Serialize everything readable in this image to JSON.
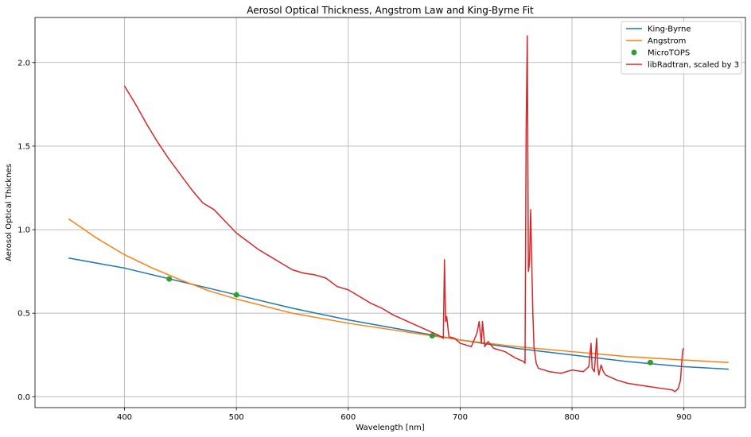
{
  "chart_data": {
    "type": "line",
    "title": "Aerosol Optical Thickness, Angstrom Law and King-Byrne Fit",
    "xlabel": "Wavelength [nm]",
    "ylabel": "Aerosol Optical Thicknes",
    "xlim": [
      320,
      955
    ],
    "ylim": [
      -0.065,
      2.27
    ],
    "x_ticks": [
      "400",
      "500",
      "600",
      "700",
      "800",
      "900"
    ],
    "y_ticks": [
      "0.0",
      "0.5",
      "1.0",
      "1.5",
      "2.0"
    ],
    "grid": true,
    "legend_position": "top-right",
    "series": [
      {
        "name": "King-Byrne",
        "kind": "line",
        "color": "#1f77b4",
        "x": [
          350,
          400,
          450,
          500,
          550,
          600,
          650,
          700,
          750,
          800,
          850,
          900,
          940
        ],
        "y": [
          0.83,
          0.77,
          0.69,
          0.61,
          0.53,
          0.46,
          0.4,
          0.34,
          0.29,
          0.25,
          0.21,
          0.18,
          0.165
        ]
      },
      {
        "name": "Angstrom",
        "kind": "line",
        "color": "#ff7f0e",
        "x": [
          350,
          375,
          400,
          425,
          450,
          475,
          500,
          550,
          600,
          650,
          700,
          750,
          800,
          850,
          900,
          940
        ],
        "y": [
          1.065,
          0.95,
          0.85,
          0.77,
          0.7,
          0.635,
          0.585,
          0.5,
          0.44,
          0.39,
          0.34,
          0.3,
          0.27,
          0.24,
          0.22,
          0.205
        ]
      },
      {
        "name": "MicroTOPS",
        "kind": "scatter",
        "color": "#2ca02c",
        "x": [
          440,
          500,
          675,
          870
        ],
        "y": [
          0.705,
          0.61,
          0.365,
          0.205
        ]
      },
      {
        "name": "libRadtran, scaled by 3",
        "kind": "line",
        "color": "#d62728",
        "x": [
          400,
          410,
          420,
          430,
          440,
          450,
          460,
          470,
          480,
          490,
          500,
          510,
          520,
          530,
          540,
          550,
          560,
          570,
          580,
          590,
          600,
          610,
          620,
          630,
          640,
          650,
          660,
          670,
          680,
          685,
          686,
          687,
          688,
          690,
          695,
          700,
          710,
          715,
          717,
          719,
          720,
          722,
          725,
          730,
          740,
          750,
          757,
          758,
          759,
          760,
          761,
          762,
          763,
          764,
          765,
          766,
          768,
          770,
          775,
          780,
          790,
          800,
          810,
          815,
          817,
          818,
          820,
          822,
          823,
          824,
          826,
          828,
          830,
          840,
          850,
          860,
          870,
          880,
          890,
          892,
          895,
          897,
          898,
          899,
          900
        ],
        "y": [
          1.86,
          1.75,
          1.63,
          1.52,
          1.42,
          1.33,
          1.24,
          1.16,
          1.12,
          1.05,
          0.98,
          0.93,
          0.88,
          0.84,
          0.8,
          0.76,
          0.74,
          0.73,
          0.71,
          0.66,
          0.64,
          0.6,
          0.56,
          0.53,
          0.49,
          0.46,
          0.43,
          0.4,
          0.37,
          0.35,
          0.82,
          0.45,
          0.48,
          0.36,
          0.35,
          0.32,
          0.3,
          0.38,
          0.45,
          0.32,
          0.45,
          0.3,
          0.33,
          0.29,
          0.27,
          0.23,
          0.21,
          0.2,
          1.6,
          2.16,
          0.75,
          0.8,
          1.12,
          0.8,
          0.5,
          0.3,
          0.2,
          0.17,
          0.16,
          0.15,
          0.14,
          0.16,
          0.15,
          0.18,
          0.32,
          0.17,
          0.15,
          0.35,
          0.18,
          0.13,
          0.19,
          0.15,
          0.13,
          0.1,
          0.08,
          0.07,
          0.06,
          0.05,
          0.04,
          0.03,
          0.05,
          0.1,
          0.2,
          0.28,
          0.29
        ]
      }
    ]
  }
}
